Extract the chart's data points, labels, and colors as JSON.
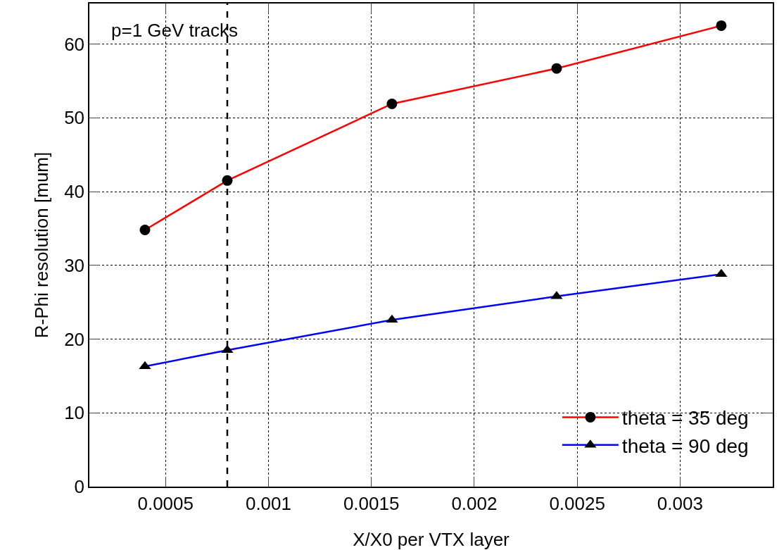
{
  "chart_data": {
    "type": "line",
    "xlabel": "X/X0 per VTX layer",
    "ylabel": "R-Phi resolution [mum]",
    "x": [
      0.0004,
      0.0008,
      0.0016,
      0.0024,
      0.0032
    ],
    "series": [
      {
        "name": "theta = 35 deg",
        "color": "#ff0000",
        "marker": "circle",
        "values": [
          34.8,
          41.5,
          51.9,
          56.7,
          62.5
        ]
      },
      {
        "name": "theta = 90 deg",
        "color": "#0000ff",
        "marker": "triangle",
        "values": [
          16.3,
          18.5,
          22.6,
          25.8,
          28.8
        ]
      }
    ],
    "xlim": [
      0.00013,
      0.00345
    ],
    "xticks": [
      0.0005,
      0.001,
      0.0015,
      0.002,
      0.0025,
      0.003
    ],
    "ylim": [
      0,
      65.5
    ],
    "yticks": [
      0,
      10,
      20,
      30,
      40,
      50,
      60
    ],
    "grid": true,
    "legend": "bottom right",
    "line_style": "solid",
    "ref_lines": [
      {
        "axis": "x",
        "value": 0.0008,
        "color": "#000000",
        "line_style": "dashed"
      }
    ],
    "annotations": [
      "p=1 GeV tracks"
    ]
  }
}
